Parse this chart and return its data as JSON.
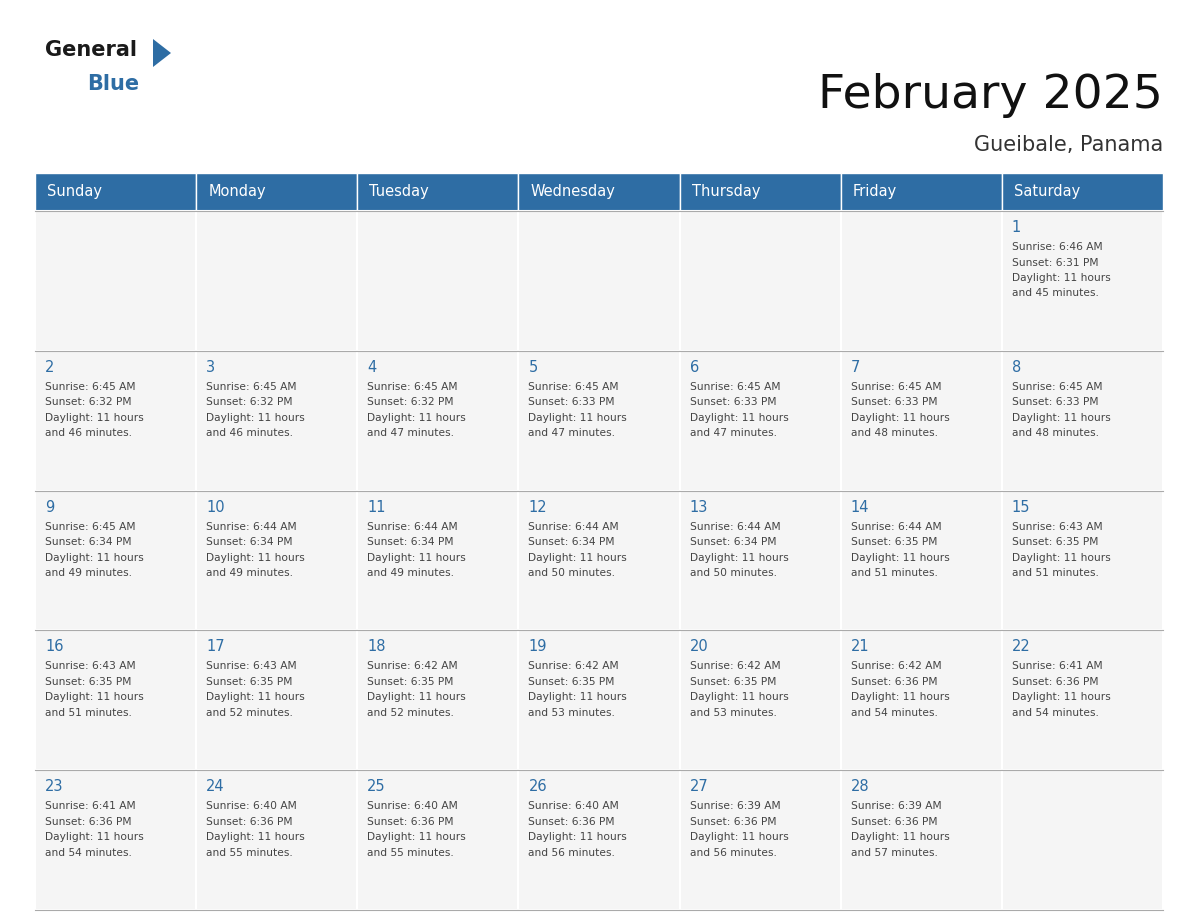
{
  "title": "February 2025",
  "subtitle": "Gueibale, Panama",
  "days_of_week": [
    "Sunday",
    "Monday",
    "Tuesday",
    "Wednesday",
    "Thursday",
    "Friday",
    "Saturday"
  ],
  "header_bg": "#2E6DA4",
  "header_text": "#FFFFFF",
  "cell_bg": "#F5F5F5",
  "cell_border_color": "#BBBBBB",
  "day_number_color": "#2E6DA4",
  "text_color": "#444444",
  "title_color": "#111111",
  "subtitle_color": "#333333",
  "calendar_data": [
    [
      null,
      null,
      null,
      null,
      null,
      null,
      {
        "day": "1",
        "sunrise": "6:46 AM",
        "sunset": "6:31 PM",
        "daylight_hours": "11",
        "daylight_minutes": "45"
      }
    ],
    [
      {
        "day": "2",
        "sunrise": "6:45 AM",
        "sunset": "6:32 PM",
        "daylight_hours": "11",
        "daylight_minutes": "46"
      },
      {
        "day": "3",
        "sunrise": "6:45 AM",
        "sunset": "6:32 PM",
        "daylight_hours": "11",
        "daylight_minutes": "46"
      },
      {
        "day": "4",
        "sunrise": "6:45 AM",
        "sunset": "6:32 PM",
        "daylight_hours": "11",
        "daylight_minutes": "47"
      },
      {
        "day": "5",
        "sunrise": "6:45 AM",
        "sunset": "6:33 PM",
        "daylight_hours": "11",
        "daylight_minutes": "47"
      },
      {
        "day": "6",
        "sunrise": "6:45 AM",
        "sunset": "6:33 PM",
        "daylight_hours": "11",
        "daylight_minutes": "47"
      },
      {
        "day": "7",
        "sunrise": "6:45 AM",
        "sunset": "6:33 PM",
        "daylight_hours": "11",
        "daylight_minutes": "48"
      },
      {
        "day": "8",
        "sunrise": "6:45 AM",
        "sunset": "6:33 PM",
        "daylight_hours": "11",
        "daylight_minutes": "48"
      }
    ],
    [
      {
        "day": "9",
        "sunrise": "6:45 AM",
        "sunset": "6:34 PM",
        "daylight_hours": "11",
        "daylight_minutes": "49"
      },
      {
        "day": "10",
        "sunrise": "6:44 AM",
        "sunset": "6:34 PM",
        "daylight_hours": "11",
        "daylight_minutes": "49"
      },
      {
        "day": "11",
        "sunrise": "6:44 AM",
        "sunset": "6:34 PM",
        "daylight_hours": "11",
        "daylight_minutes": "49"
      },
      {
        "day": "12",
        "sunrise": "6:44 AM",
        "sunset": "6:34 PM",
        "daylight_hours": "11",
        "daylight_minutes": "50"
      },
      {
        "day": "13",
        "sunrise": "6:44 AM",
        "sunset": "6:34 PM",
        "daylight_hours": "11",
        "daylight_minutes": "50"
      },
      {
        "day": "14",
        "sunrise": "6:44 AM",
        "sunset": "6:35 PM",
        "daylight_hours": "11",
        "daylight_minutes": "51"
      },
      {
        "day": "15",
        "sunrise": "6:43 AM",
        "sunset": "6:35 PM",
        "daylight_hours": "11",
        "daylight_minutes": "51"
      }
    ],
    [
      {
        "day": "16",
        "sunrise": "6:43 AM",
        "sunset": "6:35 PM",
        "daylight_hours": "11",
        "daylight_minutes": "51"
      },
      {
        "day": "17",
        "sunrise": "6:43 AM",
        "sunset": "6:35 PM",
        "daylight_hours": "11",
        "daylight_minutes": "52"
      },
      {
        "day": "18",
        "sunrise": "6:42 AM",
        "sunset": "6:35 PM",
        "daylight_hours": "11",
        "daylight_minutes": "52"
      },
      {
        "day": "19",
        "sunrise": "6:42 AM",
        "sunset": "6:35 PM",
        "daylight_hours": "11",
        "daylight_minutes": "53"
      },
      {
        "day": "20",
        "sunrise": "6:42 AM",
        "sunset": "6:35 PM",
        "daylight_hours": "11",
        "daylight_minutes": "53"
      },
      {
        "day": "21",
        "sunrise": "6:42 AM",
        "sunset": "6:36 PM",
        "daylight_hours": "11",
        "daylight_minutes": "54"
      },
      {
        "day": "22",
        "sunrise": "6:41 AM",
        "sunset": "6:36 PM",
        "daylight_hours": "11",
        "daylight_minutes": "54"
      }
    ],
    [
      {
        "day": "23",
        "sunrise": "6:41 AM",
        "sunset": "6:36 PM",
        "daylight_hours": "11",
        "daylight_minutes": "54"
      },
      {
        "day": "24",
        "sunrise": "6:40 AM",
        "sunset": "6:36 PM",
        "daylight_hours": "11",
        "daylight_minutes": "55"
      },
      {
        "day": "25",
        "sunrise": "6:40 AM",
        "sunset": "6:36 PM",
        "daylight_hours": "11",
        "daylight_minutes": "55"
      },
      {
        "day": "26",
        "sunrise": "6:40 AM",
        "sunset": "6:36 PM",
        "daylight_hours": "11",
        "daylight_minutes": "56"
      },
      {
        "day": "27",
        "sunrise": "6:39 AM",
        "sunset": "6:36 PM",
        "daylight_hours": "11",
        "daylight_minutes": "56"
      },
      {
        "day": "28",
        "sunrise": "6:39 AM",
        "sunset": "6:36 PM",
        "daylight_hours": "11",
        "daylight_minutes": "57"
      },
      null
    ]
  ],
  "logo_general_color": "#1A1A1A",
  "logo_blue_color": "#2E6DA4",
  "logo_triangle_color": "#2E6DA4"
}
